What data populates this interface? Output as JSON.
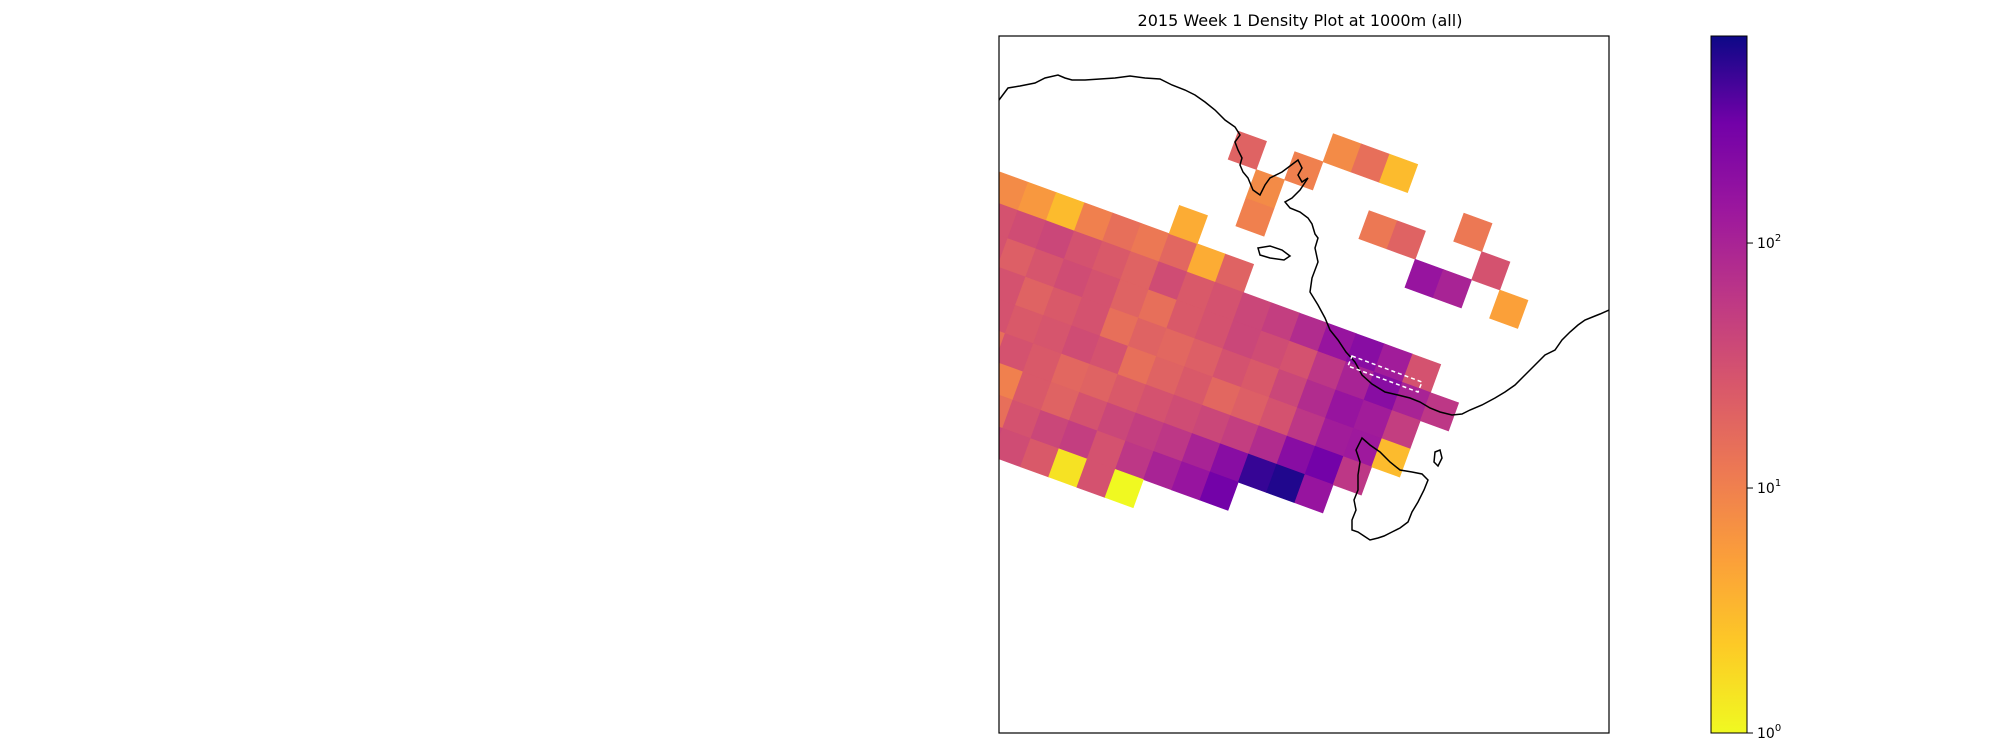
{
  "chart_data": {
    "type": "heatmap",
    "title": "2015 Week 1 Density Plot at 1000m (all)",
    "colorbar": {
      "scale": "log",
      "range": [
        1,
        700
      ],
      "colormap": "plasma-reversed",
      "ticks": [
        {
          "value": 1,
          "base": "10",
          "exp": "0"
        },
        {
          "value": 10,
          "base": "10",
          "exp": "1"
        },
        {
          "value": 100,
          "base": "10",
          "exp": "2"
        }
      ]
    },
    "grid": {
      "rotation_deg": 20,
      "rows": [
        {
          "start": 0,
          "values": [
            8,
            6,
            3,
            10,
            15,
            12,
            18,
            4,
            20
          ]
        },
        {
          "start": 0,
          "values": [
            30,
            35,
            40,
            30,
            25,
            20,
            35,
            25,
            30,
            40,
            50,
            80,
            150,
            200,
            120,
            30
          ]
        },
        {
          "start": -1,
          "values": [
            25,
            30,
            22,
            28,
            35,
            30,
            20,
            15,
            25,
            30,
            40,
            35,
            30,
            60,
            100,
            200,
            100,
            60
          ]
        },
        {
          "start": -1,
          "values": [
            20,
            25,
            30,
            20,
            25,
            30,
            15,
            20,
            18,
            22,
            30,
            25,
            40,
            80,
            150,
            120,
            50
          ]
        },
        {
          "start": -1,
          "values": [
            10,
            20,
            30,
            25,
            28,
            35,
            30,
            15,
            20,
            25,
            18,
            22,
            30,
            60,
            120,
            130,
            3
          ]
        },
        {
          "start": -2,
          "values": [
            30,
            20,
            25,
            15,
            30,
            25,
            18,
            20,
            25,
            30,
            35,
            40,
            50,
            80,
            200,
            300,
            60
          ]
        },
        {
          "start": -2,
          "values": [
            25,
            12,
            30,
            18,
            10,
            25,
            20,
            30,
            40,
            50,
            60,
            100,
            200,
            500,
            600,
            150
          ]
        },
        {
          "start": -2,
          "values": [
            20,
            30,
            25,
            20,
            15,
            30,
            40,
            50,
            30,
            60,
            100,
            150,
            300
          ]
        },
        {
          "start": -2,
          "values": [
            25,
            30,
            20,
            18,
            40,
            35,
            25,
            1.5,
            30,
            1
          ]
        },
        {
          "start": -2,
          "values": [
            30,
            40,
            25
          ]
        },
        {
          "start": -2,
          "values": [
            20,
            25
          ]
        }
      ],
      "extras": [
        {
          "col": 6,
          "row": -1,
          "value": 4
        },
        {
          "col": 8,
          "row": -2,
          "value": 10
        },
        {
          "col": 8,
          "row": -3,
          "value": 8
        },
        {
          "col": 9,
          "row": -4,
          "value": 10
        },
        {
          "col": 7,
          "row": -4,
          "value": 20
        },
        {
          "col": 10,
          "row": -5,
          "value": 8
        },
        {
          "col": 11,
          "row": -5,
          "value": 15
        },
        {
          "col": 12,
          "row": -5,
          "value": 3
        },
        {
          "col": 12,
          "row": -3,
          "value": 12
        },
        {
          "col": 13,
          "row": -3,
          "value": 20
        },
        {
          "col": 14,
          "row": -2,
          "value": 150
        },
        {
          "col": 15,
          "row": -2,
          "value": 100
        },
        {
          "col": 15,
          "row": -4,
          "value": 12
        },
        {
          "col": 16,
          "row": -3,
          "value": 30
        },
        {
          "col": 17,
          "row": -2,
          "value": 5
        }
      ]
    }
  }
}
